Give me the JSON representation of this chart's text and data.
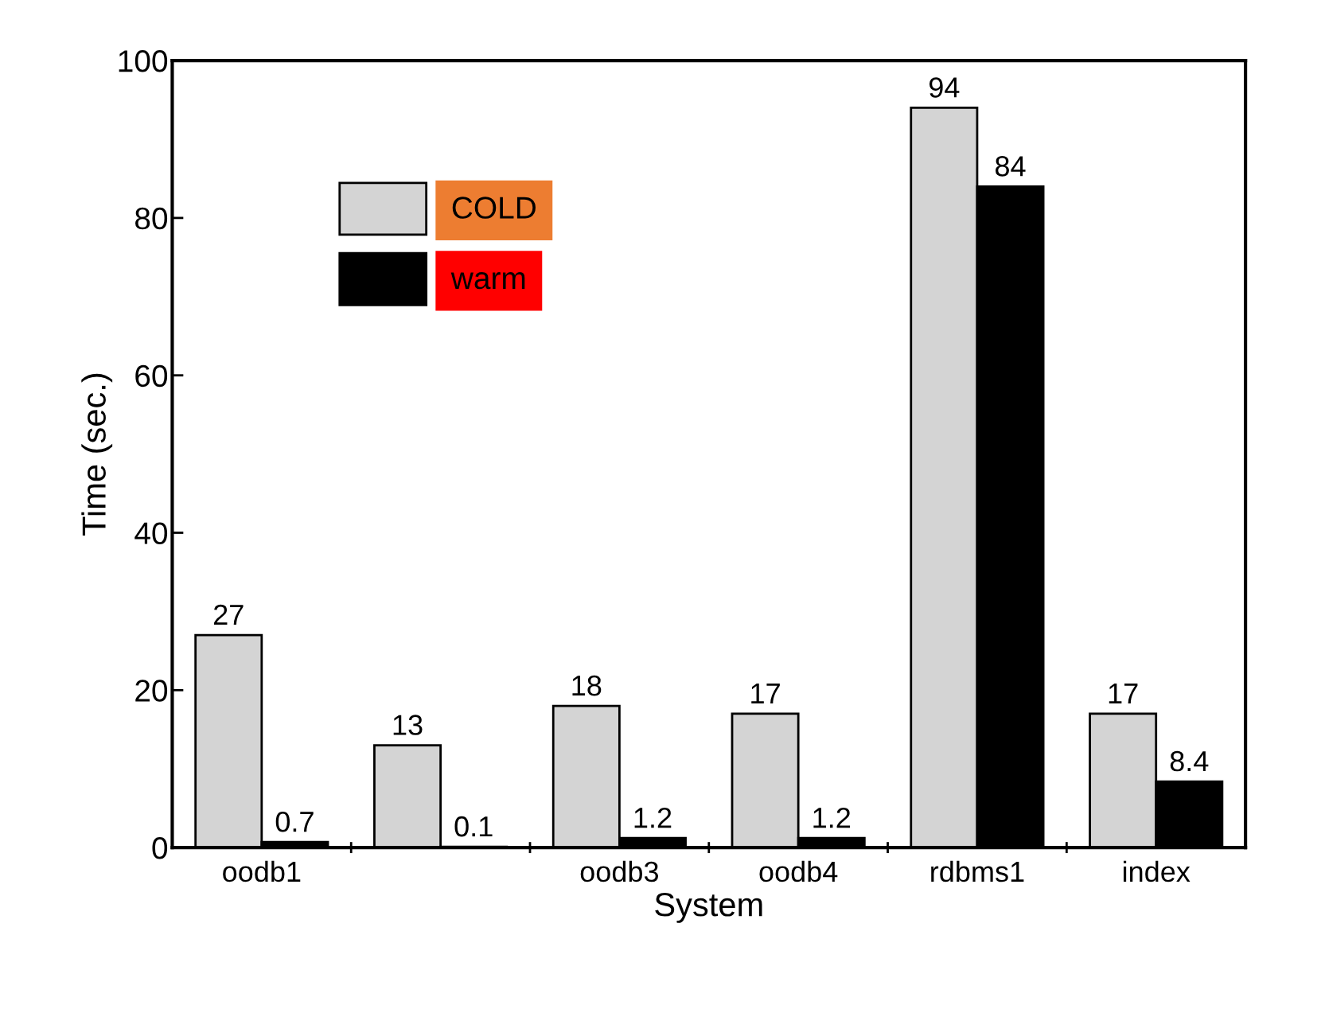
{
  "chart_data": {
    "type": "bar",
    "xlabel": "System",
    "ylabel": "Time (sec.)",
    "categories": [
      "oodb1",
      null,
      "oodb3",
      "oodb4",
      "rdbms1",
      "index"
    ],
    "series": [
      {
        "name": "COLD",
        "color": "#d4d4d4",
        "values": [
          27,
          13,
          18,
          17,
          94,
          17
        ]
      },
      {
        "name": "warm",
        "color": "#000000",
        "values": [
          0.7,
          0.1,
          1.2,
          1.2,
          84,
          8.4
        ]
      }
    ],
    "ylim": [
      0,
      100
    ],
    "yticks": [
      0,
      20,
      40,
      60,
      80,
      100
    ],
    "grid": false,
    "legend": "top left",
    "data_labels": true
  }
}
